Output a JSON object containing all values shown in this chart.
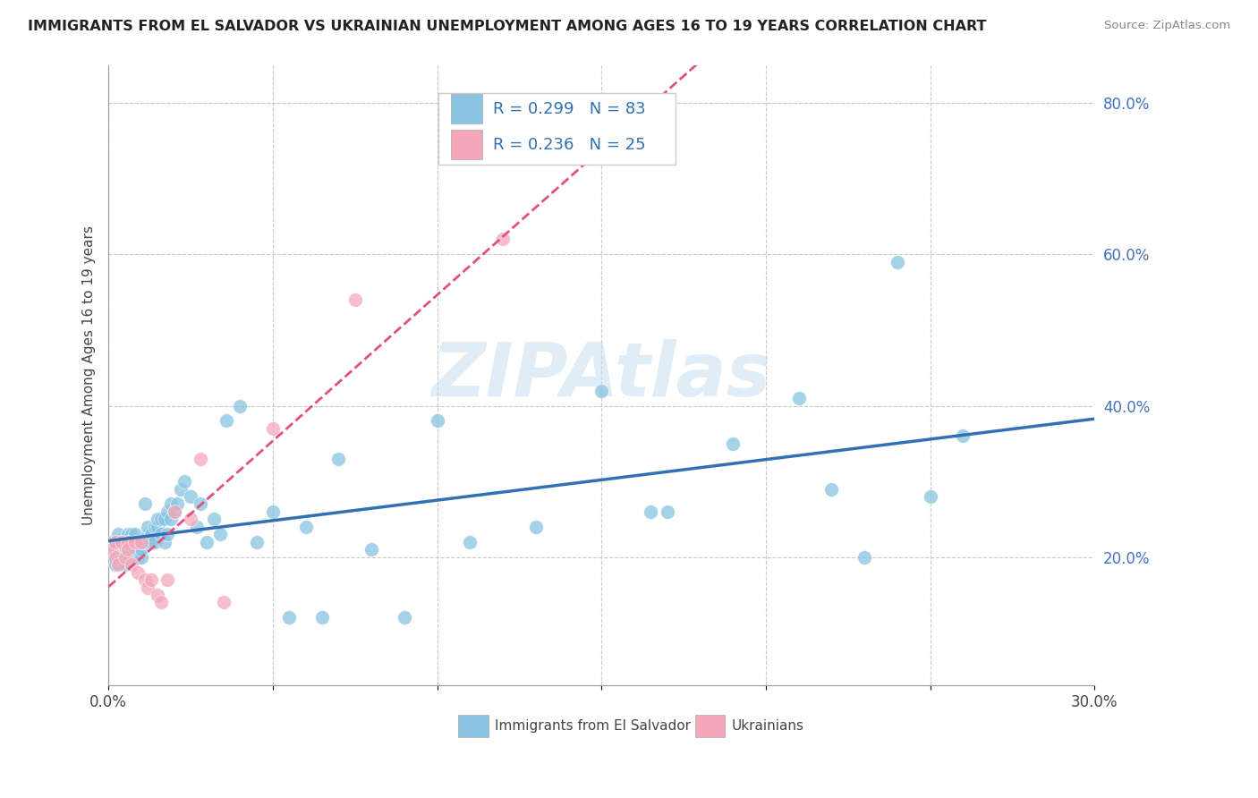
{
  "title": "IMMIGRANTS FROM EL SALVADOR VS UKRAINIAN UNEMPLOYMENT AMONG AGES 16 TO 19 YEARS CORRELATION CHART",
  "source": "Source: ZipAtlas.com",
  "ylabel": "Unemployment Among Ages 16 to 19 years",
  "xlim": [
    0.0,
    0.3
  ],
  "ylim": [
    0.03,
    0.85
  ],
  "xticks": [
    0.0,
    0.05,
    0.1,
    0.15,
    0.2,
    0.25,
    0.3
  ],
  "xticklabels": [
    "0.0%",
    "",
    "",
    "",
    "",
    "",
    "30.0%"
  ],
  "yticks_right": [
    0.2,
    0.4,
    0.6,
    0.8
  ],
  "ytick_labels_right": [
    "20.0%",
    "40.0%",
    "60.0%",
    "80.0%"
  ],
  "blue_color": "#89c4e1",
  "pink_color": "#f4a7b9",
  "blue_line_color": "#3070b3",
  "pink_line_color": "#e05080",
  "watermark": "ZIPAtlas",
  "blue_scatter_x": [
    0.001,
    0.001,
    0.002,
    0.002,
    0.002,
    0.003,
    0.003,
    0.003,
    0.003,
    0.004,
    0.004,
    0.004,
    0.005,
    0.005,
    0.005,
    0.005,
    0.006,
    0.006,
    0.006,
    0.006,
    0.007,
    0.007,
    0.007,
    0.008,
    0.008,
    0.008,
    0.009,
    0.009,
    0.009,
    0.01,
    0.01,
    0.01,
    0.011,
    0.011,
    0.012,
    0.012,
    0.013,
    0.013,
    0.014,
    0.014,
    0.015,
    0.015,
    0.016,
    0.016,
    0.017,
    0.017,
    0.018,
    0.018,
    0.019,
    0.019,
    0.02,
    0.021,
    0.022,
    0.023,
    0.025,
    0.027,
    0.028,
    0.03,
    0.032,
    0.034,
    0.036,
    0.04,
    0.045,
    0.05,
    0.055,
    0.06,
    0.065,
    0.07,
    0.08,
    0.09,
    0.1,
    0.11,
    0.13,
    0.15,
    0.17,
    0.19,
    0.21,
    0.23,
    0.25,
    0.26,
    0.165,
    0.22,
    0.24
  ],
  "blue_scatter_y": [
    0.2,
    0.22,
    0.19,
    0.21,
    0.22,
    0.2,
    0.21,
    0.22,
    0.23,
    0.2,
    0.21,
    0.22,
    0.19,
    0.2,
    0.21,
    0.22,
    0.2,
    0.21,
    0.22,
    0.23,
    0.21,
    0.22,
    0.23,
    0.21,
    0.22,
    0.23,
    0.2,
    0.21,
    0.22,
    0.2,
    0.21,
    0.22,
    0.22,
    0.27,
    0.23,
    0.24,
    0.22,
    0.23,
    0.24,
    0.22,
    0.24,
    0.25,
    0.23,
    0.25,
    0.25,
    0.22,
    0.26,
    0.23,
    0.25,
    0.27,
    0.26,
    0.27,
    0.29,
    0.3,
    0.28,
    0.24,
    0.27,
    0.22,
    0.25,
    0.23,
    0.38,
    0.4,
    0.22,
    0.26,
    0.12,
    0.24,
    0.12,
    0.33,
    0.21,
    0.12,
    0.38,
    0.22,
    0.24,
    0.42,
    0.26,
    0.35,
    0.41,
    0.2,
    0.28,
    0.36,
    0.26,
    0.29,
    0.59
  ],
  "pink_scatter_x": [
    0.001,
    0.002,
    0.002,
    0.003,
    0.004,
    0.005,
    0.006,
    0.006,
    0.007,
    0.008,
    0.009,
    0.01,
    0.011,
    0.012,
    0.013,
    0.015,
    0.016,
    0.018,
    0.02,
    0.025,
    0.028,
    0.035,
    0.05,
    0.075,
    0.12
  ],
  "pink_scatter_y": [
    0.21,
    0.2,
    0.22,
    0.19,
    0.22,
    0.2,
    0.22,
    0.21,
    0.19,
    0.22,
    0.18,
    0.22,
    0.17,
    0.16,
    0.17,
    0.15,
    0.14,
    0.17,
    0.26,
    0.25,
    0.33,
    0.14,
    0.37,
    0.54,
    0.62
  ]
}
